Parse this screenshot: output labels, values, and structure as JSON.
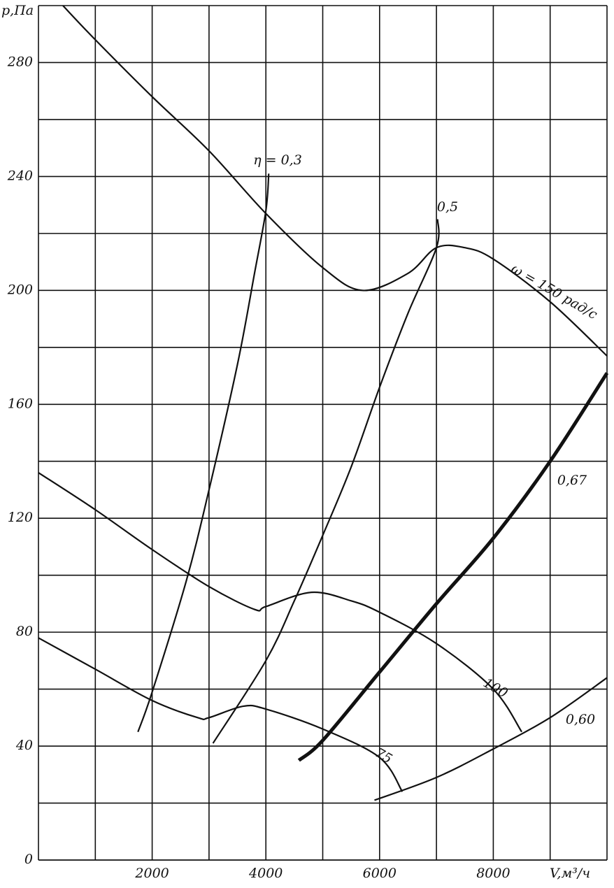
{
  "chart_data": {
    "type": "line",
    "y_label": "p,Па",
    "x_label": "V,м³/ч",
    "xlim": [
      0,
      10000
    ],
    "ylim": [
      0,
      300
    ],
    "xticks": [
      2000,
      4000,
      6000,
      8000
    ],
    "xminor": [
      1000,
      3000,
      5000,
      7000,
      9000,
      10000
    ],
    "yticks": [
      0,
      40,
      80,
      120,
      160,
      200,
      240,
      280
    ],
    "yminor": [
      20,
      60,
      100,
      140,
      180,
      220,
      260,
      300
    ],
    "grid": true,
    "color": "#111111",
    "series": [
      {
        "name": "ω = 150 рад/с",
        "x": [
          430,
          1000,
          2000,
          3000,
          4000,
          5000,
          5700,
          6500,
          7000,
          7500,
          8000,
          9000,
          10000
        ],
        "values": [
          300,
          288,
          268,
          249,
          227,
          208,
          200,
          206,
          215,
          215,
          211,
          196,
          177
        ]
      },
      {
        "name": "100",
        "x": [
          0,
          1000,
          2000,
          3000,
          3800,
          4000,
          4800,
          5500,
          6000,
          7000,
          8000,
          8500
        ],
        "values": [
          136,
          123,
          109,
          96,
          88,
          89,
          94,
          91,
          87,
          76,
          60,
          45
        ]
      },
      {
        "name": "75",
        "x": [
          0,
          1000,
          2000,
          2800,
          3000,
          3600,
          4000,
          5000,
          6000,
          6400
        ],
        "values": [
          78,
          67,
          56,
          50,
          50,
          54,
          53,
          46,
          36,
          24
        ]
      },
      {
        "name": "η = 0,3",
        "x": [
          1750,
          2000,
          2600,
          3000,
          3500,
          3800,
          4000,
          4050
        ],
        "values": [
          45,
          59,
          98,
          130,
          174,
          206,
          228,
          241
        ]
      },
      {
        "name": "0,5",
        "x": [
          3070,
          4000,
          4500,
          5000,
          5500,
          6000,
          6500,
          7000,
          7020
        ],
        "values": [
          41,
          70,
          91,
          114,
          138,
          166,
          192,
          215,
          225
        ]
      },
      {
        "name": "0,67",
        "x": [
          4580,
          5000,
          6000,
          7000,
          8000,
          9000,
          10000
        ],
        "values": [
          35,
          42,
          66,
          90,
          113,
          140,
          171
        ]
      },
      {
        "name": "0,60",
        "x": [
          5910,
          7000,
          8000,
          9000,
          10000
        ],
        "values": [
          21,
          29,
          39,
          50,
          64
        ]
      }
    ]
  }
}
